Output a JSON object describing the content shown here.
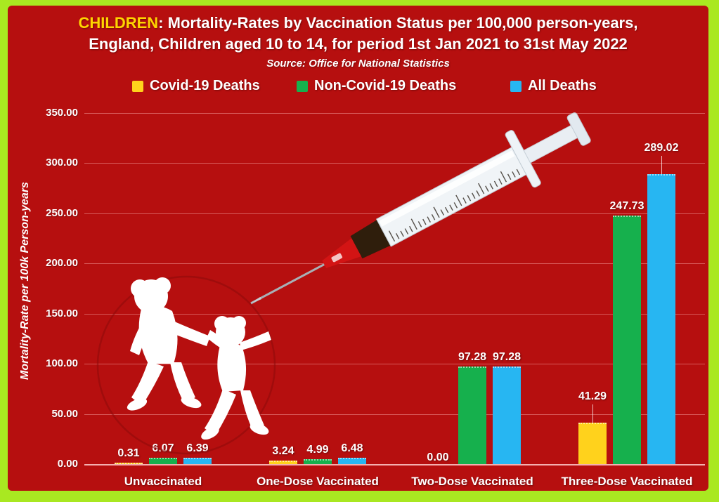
{
  "frame": {
    "border_color": "#a9e821",
    "background": "#b60f0f"
  },
  "header": {
    "title_highlight": "CHILDREN",
    "title_rest": ": Mortality-Rates by Vaccination Status per 100,000 person-years,",
    "title_line2": "England, Children aged 10 to 14, for period 1st Jan 2021 to 31st May 2022",
    "source": "Source: Office for National Statistics",
    "highlight_color": "#ffd400"
  },
  "legend": [
    {
      "label": "Covid-19 Deaths",
      "color": "#ffd21c"
    },
    {
      "label": "Non-Covid-19 Deaths",
      "color": "#16b04d"
    },
    {
      "label": "All Deaths",
      "color": "#27b6f2"
    }
  ],
  "chart_data": {
    "type": "bar",
    "title": "CHILDREN: Mortality-Rates by Vaccination Status per 100,000 person-years, England, Children aged 10 to 14, for period 1st Jan 2021 to 31st May 2022",
    "source": "Source: Office for National Statistics",
    "categories": [
      "Unvaccinated",
      "One-Dose Vaccinated",
      "Two-Dose Vaccinated",
      "Three-Dose Vaccinated"
    ],
    "series": [
      {
        "name": "Covid-19 Deaths",
        "color": "#ffd21c",
        "values": [
          0.31,
          3.24,
          0.0,
          41.29
        ]
      },
      {
        "name": "Non-Covid-19 Deaths",
        "color": "#16b04d",
        "values": [
          6.07,
          4.99,
          97.28,
          247.73
        ]
      },
      {
        "name": "All Deaths",
        "color": "#27b6f2",
        "values": [
          6.39,
          6.48,
          97.28,
          289.02
        ]
      }
    ],
    "xlabel": "",
    "ylabel": "Mortality-Rate per 100k Person-years",
    "ylim": [
      0,
      350
    ],
    "ytick_step": 50,
    "ytick_format_decimals": 2,
    "grid": true,
    "legend_position": "top",
    "label_leaders": [
      [
        false,
        false,
        false,
        true
      ],
      [
        false,
        false,
        false,
        false
      ],
      [
        false,
        false,
        false,
        true
      ]
    ]
  }
}
